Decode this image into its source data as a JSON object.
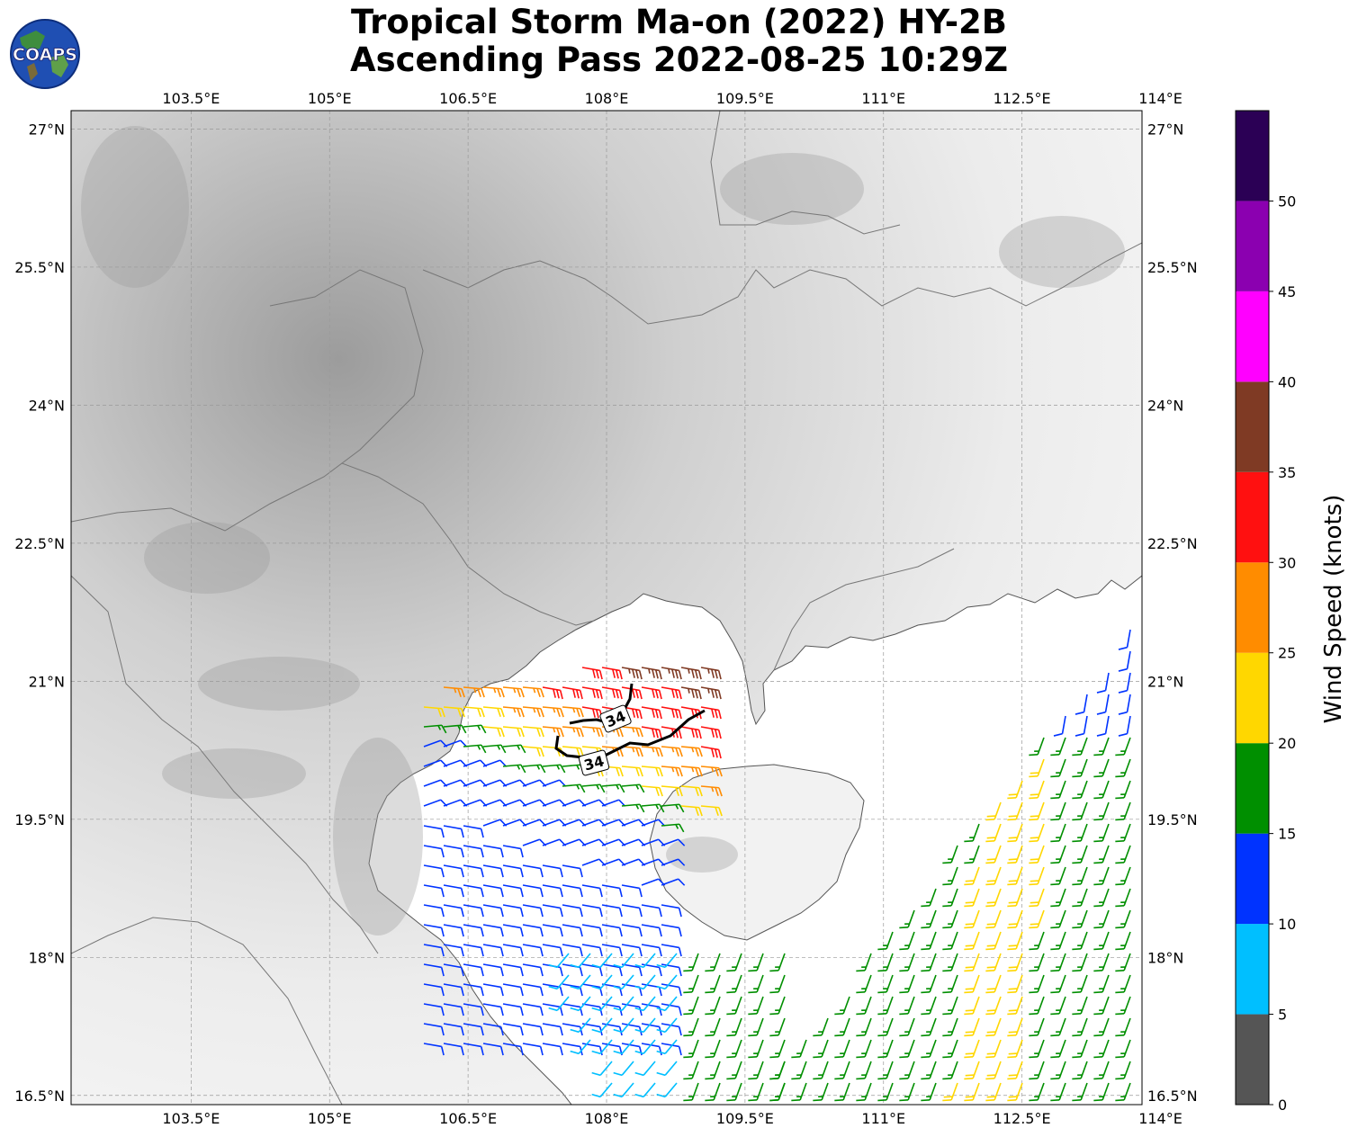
{
  "title": {
    "line1": "Tropical Storm Ma-on (2022) HY-2B",
    "line2": "Ascending Pass 2022-08-25 10:29Z"
  },
  "logo": {
    "text": "COAPS",
    "icon": "globe-logo-icon"
  },
  "map": {
    "lon_range": [
      102.2,
      113.8
    ],
    "lat_range": [
      16.4,
      27.2
    ],
    "lon_ticks": [
      {
        "value": 103.5,
        "label": "103.5°E"
      },
      {
        "value": 105,
        "label": "105°E"
      },
      {
        "value": 106.5,
        "label": "106.5°E"
      },
      {
        "value": 108,
        "label": "108°E"
      },
      {
        "value": 109.5,
        "label": "109.5°E"
      },
      {
        "value": 111,
        "label": "111°E"
      },
      {
        "value": 112.5,
        "label": "112.5°E"
      },
      {
        "value": 114,
        "label": "114°E"
      }
    ],
    "lat_ticks": [
      {
        "value": 27,
        "label": "27°N"
      },
      {
        "value": 25.5,
        "label": "25.5°N"
      },
      {
        "value": 24,
        "label": "24°N"
      },
      {
        "value": 22.5,
        "label": "22.5°N"
      },
      {
        "value": 21,
        "label": "21°N"
      },
      {
        "value": 19.5,
        "label": "19.5°N"
      },
      {
        "value": 18,
        "label": "18°N"
      },
      {
        "value": 16.5,
        "label": "16.5°N"
      }
    ],
    "grid": true,
    "basemap": "grayscale topography"
  },
  "contour": {
    "label": "34",
    "description": "34-knot wind contour"
  },
  "colorbar": {
    "label": "Wind Speed (knots)",
    "ticks": [
      "0",
      "5",
      "10",
      "15",
      "20",
      "25",
      "30",
      "35",
      "40",
      "45",
      "50"
    ],
    "bins": [
      {
        "min": 0,
        "max": 5,
        "color": "#555555"
      },
      {
        "min": 5,
        "max": 10,
        "color": "#00bfff"
      },
      {
        "min": 10,
        "max": 15,
        "color": "#0033ff"
      },
      {
        "min": 15,
        "max": 20,
        "color": "#008f00"
      },
      {
        "min": 20,
        "max": 25,
        "color": "#ffd700"
      },
      {
        "min": 25,
        "max": 30,
        "color": "#ff8c00"
      },
      {
        "min": 30,
        "max": 35,
        "color": "#ff1010"
      },
      {
        "min": 35,
        "max": 40,
        "color": "#7f3a24"
      },
      {
        "min": 40,
        "max": 45,
        "color": "#ff00ff"
      },
      {
        "min": 45,
        "max": 50,
        "color": "#8b00b0"
      },
      {
        "min": 50,
        "max": 55,
        "color": "#2b0055"
      }
    ]
  },
  "wind_swaths": [
    {
      "speed_kt": 32,
      "direction_deg": 100
    },
    {
      "speed_kt": 37,
      "direction_deg": 100
    },
    {
      "speed_kt": 27,
      "direction_deg": 95
    },
    {
      "speed_kt": 22,
      "direction_deg": 95
    },
    {
      "speed_kt": 17,
      "direction_deg": 85
    },
    {
      "speed_kt": 12,
      "direction_deg": 70
    },
    {
      "speed_kt": 8,
      "direction_deg": 220
    },
    {
      "speed_kt": 17,
      "direction_deg": 200
    },
    {
      "speed_kt": 22,
      "direction_deg": 200
    }
  ]
}
